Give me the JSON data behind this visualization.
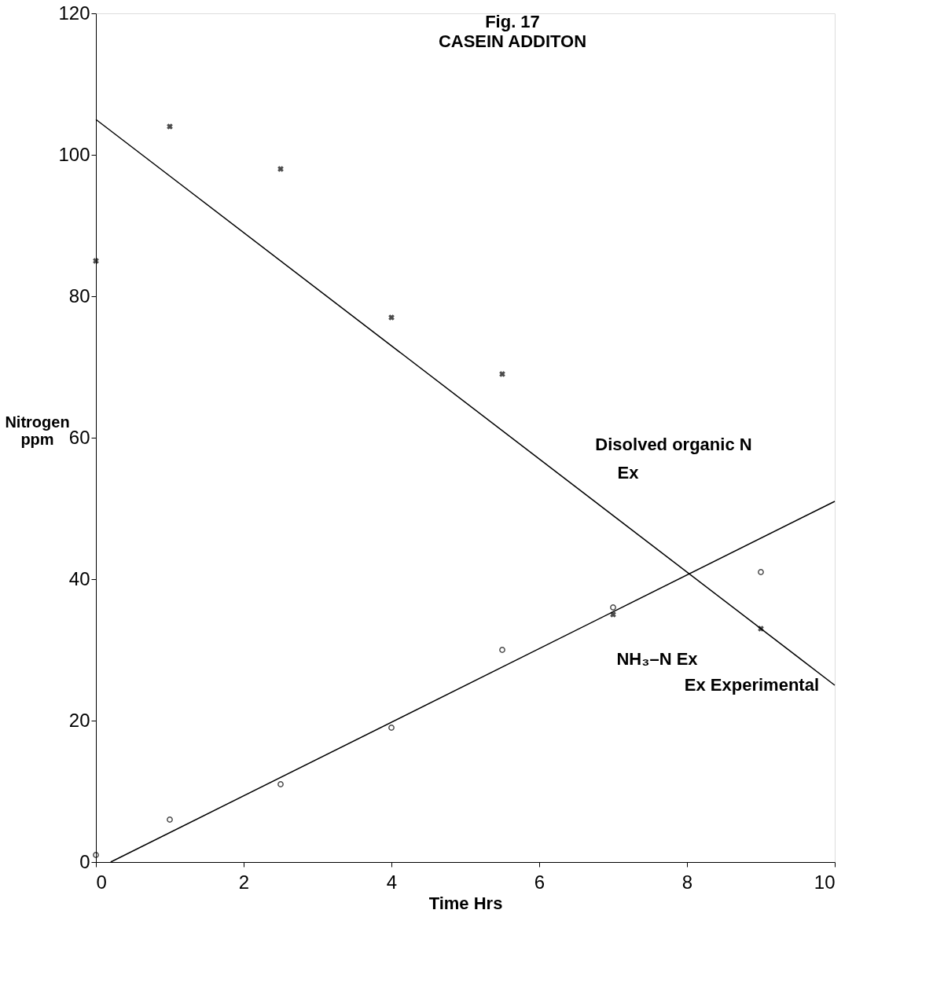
{
  "chart_data": {
    "type": "scatter",
    "title": "Fig. 17",
    "subtitle": "CASEIN ADDITON",
    "xlabel": "Time Hrs",
    "ylabel": "Nitrogen ppm",
    "xlim": [
      0,
      10
    ],
    "xticks": [
      0,
      2,
      4,
      6,
      8,
      10
    ],
    "ylim": [
      0,
      120
    ],
    "yticks": [
      0,
      20,
      40,
      60,
      80,
      100,
      120
    ],
    "grid": false,
    "series": [
      {
        "marker": "cross",
        "color": "#000000",
        "x": [
          0,
          1,
          2.5,
          4,
          5.5,
          7,
          9
        ],
        "values": [
          85,
          104,
          98,
          77,
          69,
          35,
          33
        ]
      },
      {
        "marker": "circle",
        "color": "#000000",
        "x": [
          0,
          1,
          2.5,
          4,
          5.5,
          7,
          9
        ],
        "values": [
          1,
          6,
          11,
          19,
          30,
          36,
          41
        ]
      },
      {
        "type": "line",
        "marker": "none",
        "color": "#000000",
        "x": [
          0,
          10
        ],
        "values": [
          105,
          25
        ]
      },
      {
        "type": "line",
        "marker": "none",
        "color": "#000000",
        "x": [
          0.2,
          10
        ],
        "values": [
          0,
          51
        ]
      }
    ],
    "annotations": [
      "Disolved   organic  N",
      "Ex",
      "NH₃–N   Ex",
      "Ex  Experimental"
    ]
  }
}
